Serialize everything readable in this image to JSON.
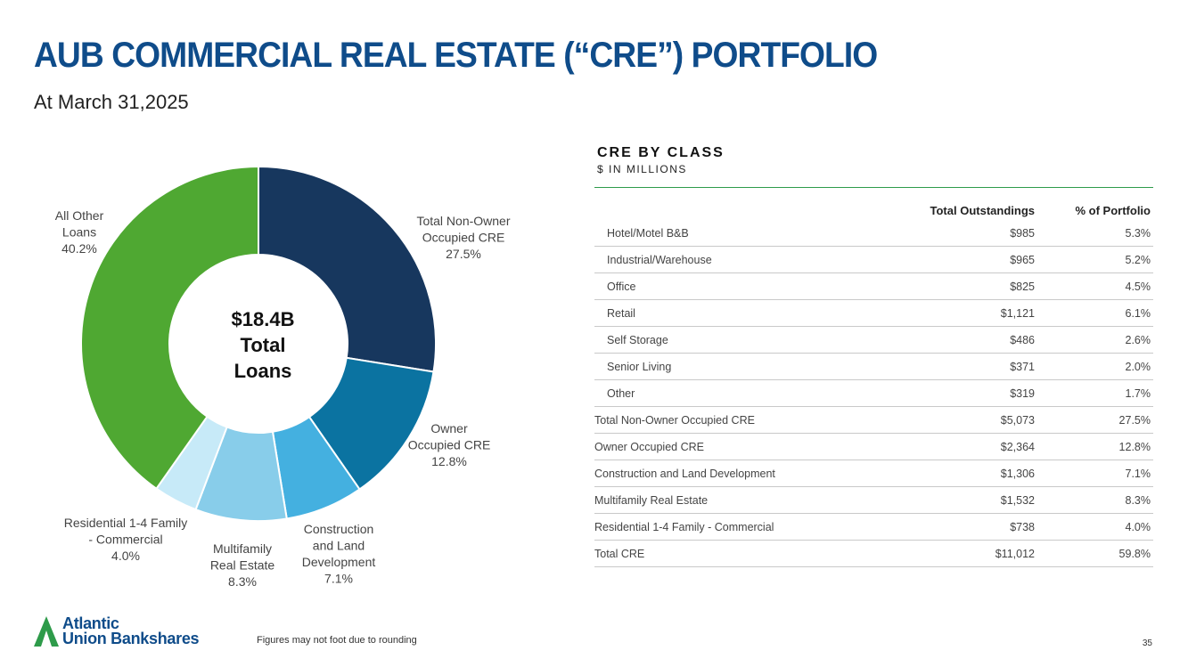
{
  "header": {
    "title": "AUB COMMERCIAL REAL ESTATE (“CRE”) PORTFOLIO",
    "subtitle": "At March 31,2025"
  },
  "chart_data": {
    "type": "pie",
    "center_label": [
      "$18.4B",
      "Total",
      "Loans"
    ],
    "slices": [
      {
        "label": [
          "Total Non-Owner",
          "Occupied CRE"
        ],
        "value": 27.5,
        "value_label": "27.5%",
        "color": "#17375e"
      },
      {
        "label": [
          "Owner",
          "Occupied CRE"
        ],
        "value": 12.8,
        "value_label": "12.8%",
        "color": "#0b73a1"
      },
      {
        "label": [
          "Construction",
          "and Land",
          "Development"
        ],
        "value": 7.1,
        "value_label": "7.1%",
        "color": "#44b0e0"
      },
      {
        "label": [
          "Multifamily",
          "Real Estate"
        ],
        "value": 8.3,
        "value_label": "8.3%",
        "color": "#88cdea"
      },
      {
        "label": [
          "Residential 1-4 Family",
          "- Commercial"
        ],
        "value": 4.0,
        "value_label": "4.0%",
        "color": "#c7eaf8"
      },
      {
        "label": [
          "All Other",
          "Loans"
        ],
        "value": 40.2,
        "value_label": "40.2%",
        "color": "#4fa832"
      }
    ]
  },
  "table": {
    "title": "CRE BY CLASS",
    "subtitle": "$ IN MILLIONS",
    "headers": [
      "",
      "Total Outstandings",
      "% of Portfolio"
    ],
    "rows": [
      {
        "label": "Hotel/Motel B&B",
        "indent": true,
        "amount": "$985",
        "pct": "5.3%"
      },
      {
        "label": "Industrial/Warehouse",
        "indent": true,
        "amount": "$965",
        "pct": "5.2%"
      },
      {
        "label": "Office",
        "indent": true,
        "amount": "$825",
        "pct": "4.5%"
      },
      {
        "label": "Retail",
        "indent": true,
        "amount": "$1,121",
        "pct": "6.1%"
      },
      {
        "label": "Self Storage",
        "indent": true,
        "amount": "$486",
        "pct": "2.6%"
      },
      {
        "label": "Senior Living",
        "indent": true,
        "amount": "$371",
        "pct": "2.0%"
      },
      {
        "label": "Other",
        "indent": true,
        "amount": "$319",
        "pct": "1.7%"
      },
      {
        "label": "Total Non-Owner Occupied CRE",
        "indent": false,
        "amount": "$5,073",
        "pct": "27.5%"
      },
      {
        "label": "Owner Occupied CRE",
        "indent": false,
        "amount": "$2,364",
        "pct": "12.8%"
      },
      {
        "label": "Construction and Land Development",
        "indent": false,
        "amount": "$1,306",
        "pct": "7.1%"
      },
      {
        "label": "Multifamily Real Estate",
        "indent": false,
        "amount": "$1,532",
        "pct": "8.3%"
      },
      {
        "label": "Residential 1-4 Family - Commercial",
        "indent": false,
        "amount": "$738",
        "pct": "4.0%"
      },
      {
        "label": "Total CRE",
        "indent": false,
        "amount": "$11,012",
        "pct": "59.8%"
      }
    ]
  },
  "footer": {
    "logo_line1": "Atlantic",
    "logo_line2": "Union Bankshares",
    "footnote": "Figures may not foot due to rounding",
    "page_number": "35"
  },
  "colors": {
    "title": "#0f4c8a",
    "rule": "#2e9b4a",
    "logo_green": "#2e9b4a",
    "logo_blue": "#0f4c8a"
  }
}
